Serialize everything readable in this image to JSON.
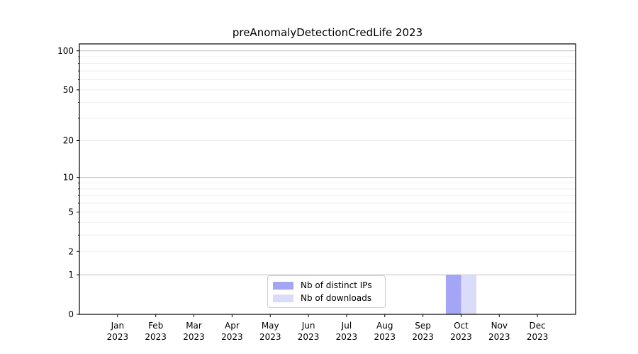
{
  "figure": {
    "background": "#ffffff"
  },
  "chart_data": {
    "type": "bar",
    "title": "preAnomalyDetectionCredLife 2023",
    "xlabel": "",
    "ylabel": "",
    "x_tick_months": [
      "Jan",
      "Feb",
      "Mar",
      "Apr",
      "May",
      "Jun",
      "Jul",
      "Aug",
      "Sep",
      "Oct",
      "Nov",
      "Dec"
    ],
    "x_tick_year": "2023",
    "categories": [
      "Jan 2023",
      "Feb 2023",
      "Mar 2023",
      "Apr 2023",
      "May 2023",
      "Jun 2023",
      "Jul 2023",
      "Aug 2023",
      "Sep 2023",
      "Oct 2023",
      "Nov 2023",
      "Dec 2023"
    ],
    "series": [
      {
        "name": "Nb of distinct IPs",
        "color": "#a5a5f5",
        "values": [
          0,
          0,
          0,
          0,
          0,
          0,
          0,
          0,
          0,
          1,
          0,
          0
        ]
      },
      {
        "name": "Nb of downloads",
        "color": "#dbdbfa",
        "values": [
          0,
          0,
          0,
          0,
          0,
          0,
          0,
          0,
          0,
          1,
          0,
          0
        ]
      }
    ],
    "yscale": "log1p",
    "ylim": [
      0,
      113
    ],
    "y_tick_labels": [
      0,
      1,
      2,
      5,
      10,
      20,
      50,
      100
    ],
    "y_major_gridlines": [
      1,
      10,
      100
    ],
    "y_minor_gridlines": [
      2,
      3,
      4,
      5,
      6,
      7,
      8,
      9,
      20,
      30,
      40,
      50,
      60,
      70,
      80,
      90
    ],
    "grid": "horizontal",
    "legend_position": "lower center"
  },
  "colors": {
    "axis": "#000000",
    "major_grid": "#c3c3c3",
    "minor_grid": "#ededed",
    "text": "#000000",
    "legend_border": "#cccccc"
  }
}
